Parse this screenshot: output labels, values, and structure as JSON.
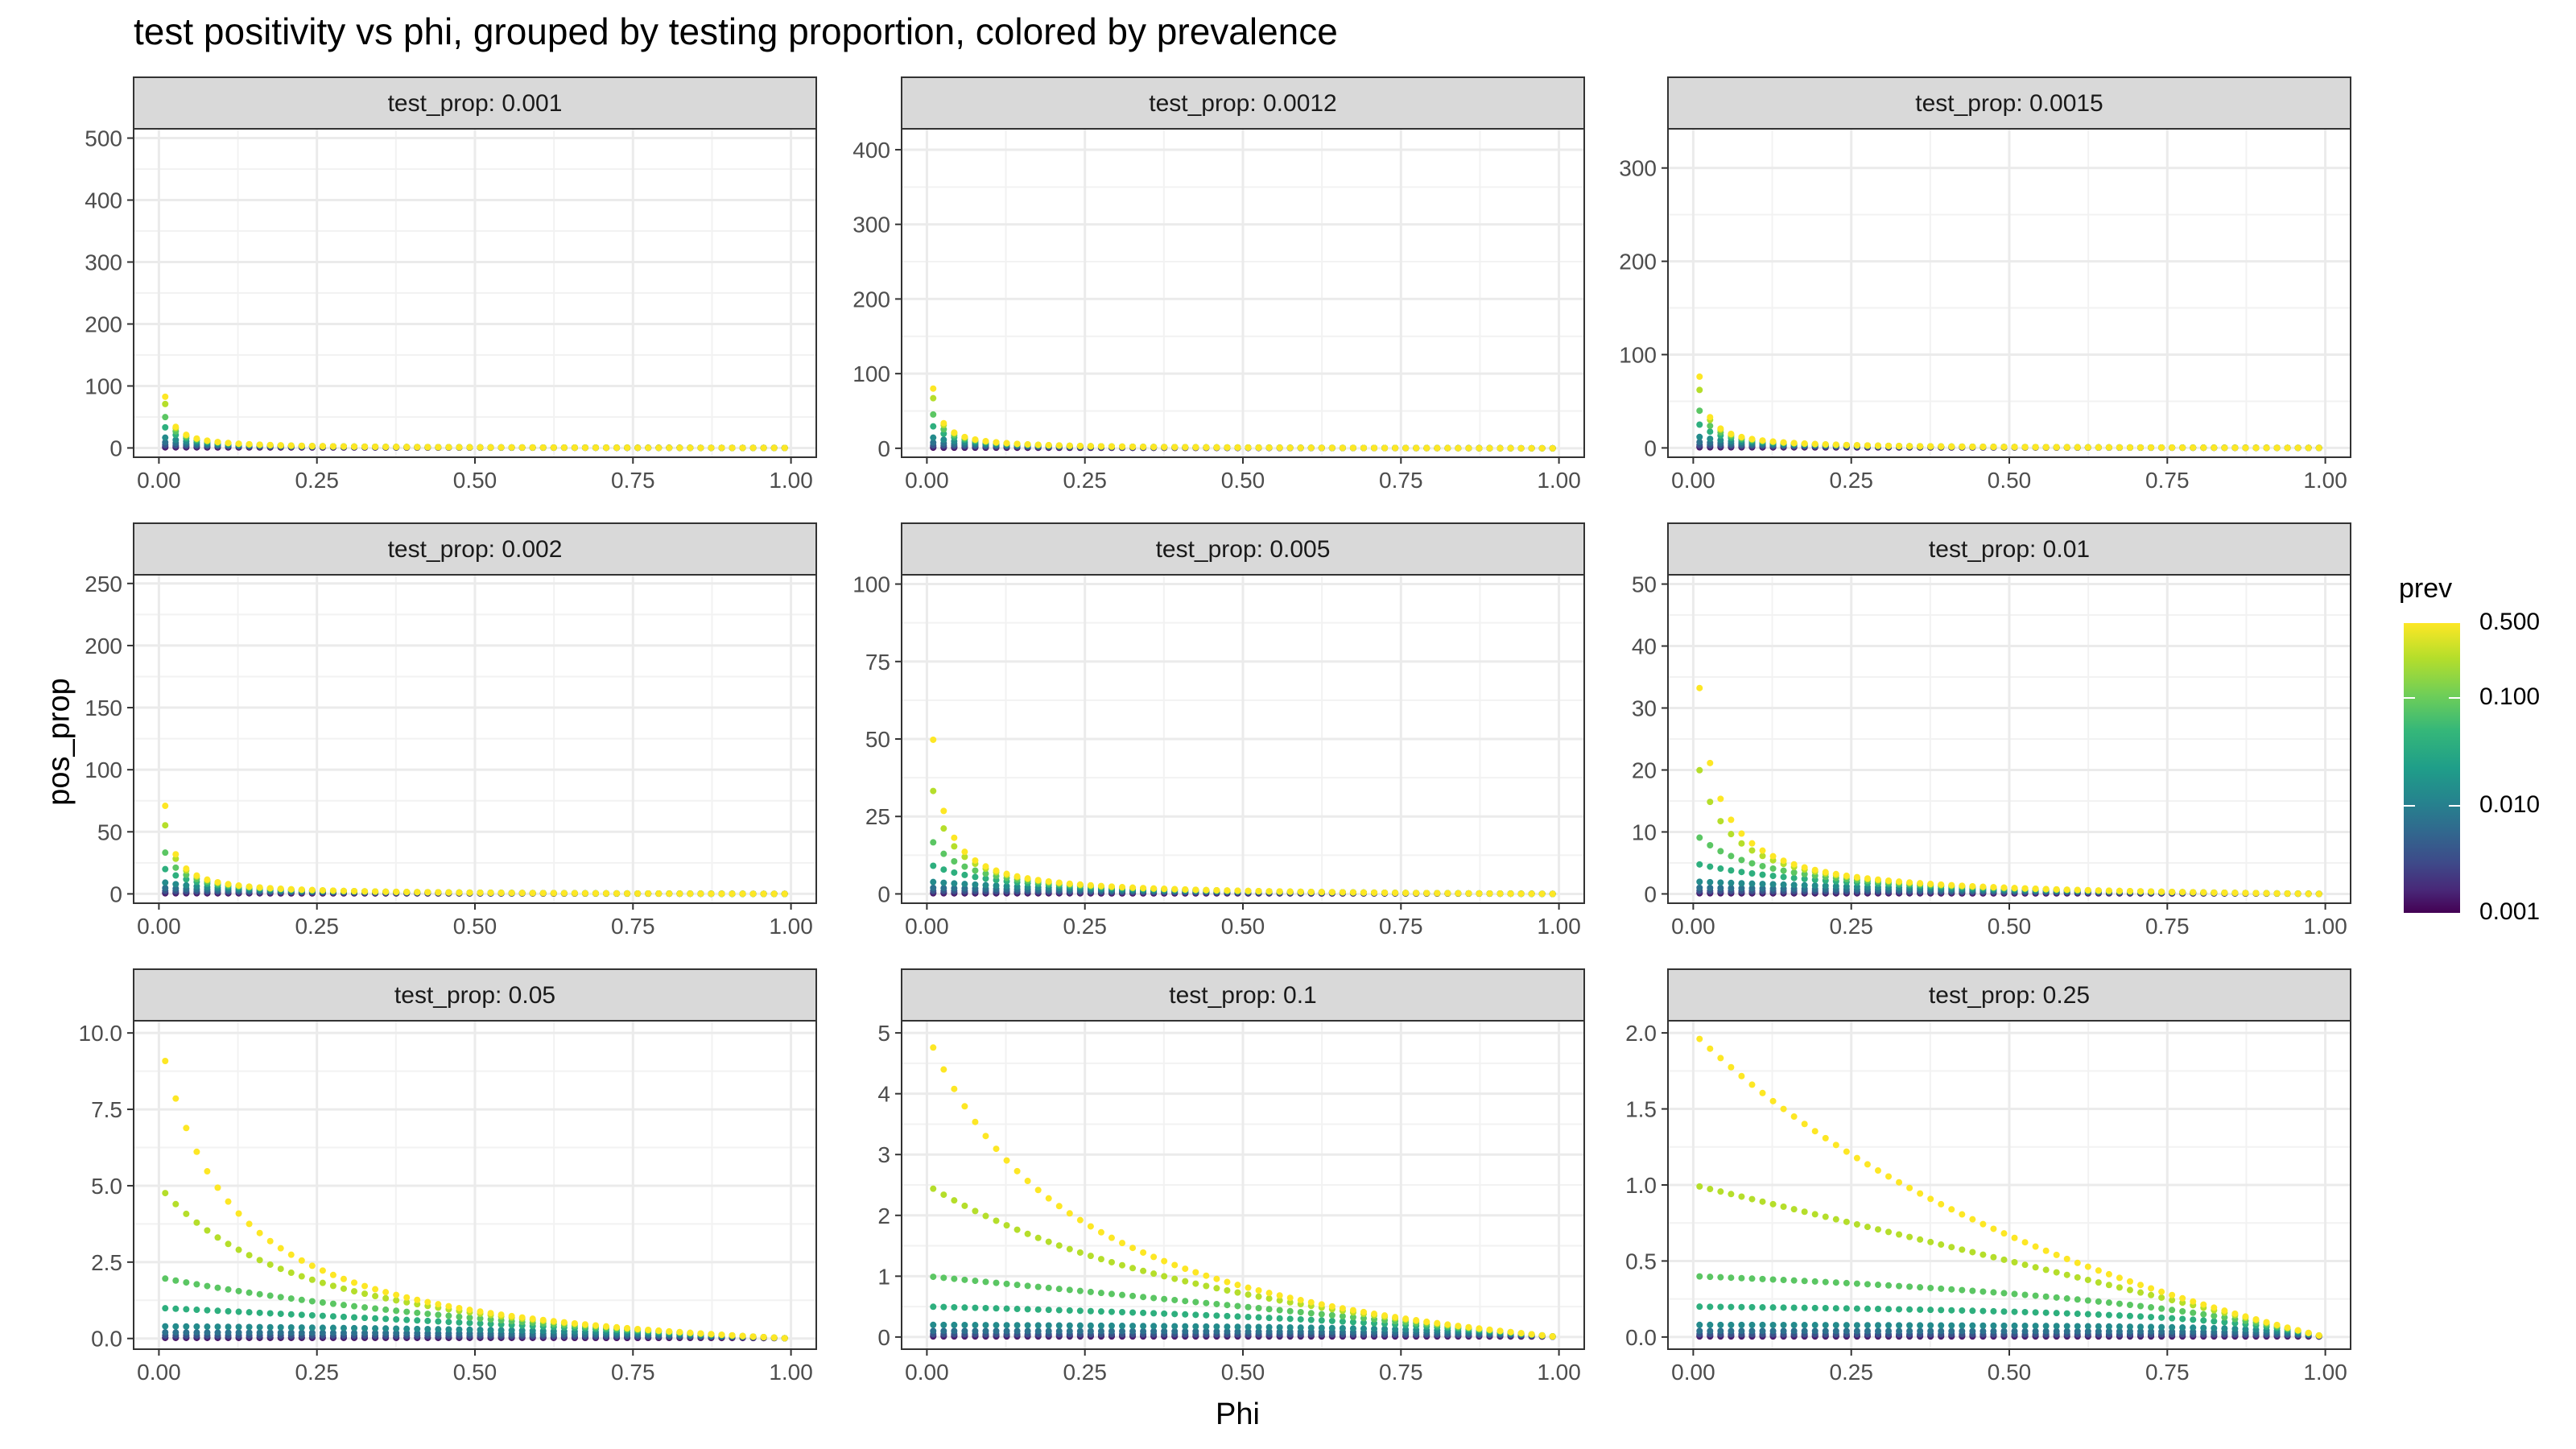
{
  "chart_data": {
    "type": "scatter",
    "title": "test positivity vs phi, grouped by testing proportion, colored by prevalence",
    "xlabel": "Phi",
    "ylabel": "pos_prop",
    "facet_prefix": "test_prop: ",
    "x_ticks": [
      "0.00",
      "0.25",
      "0.50",
      "0.75",
      "1.00"
    ],
    "xlim": [
      -0.04,
      1.04
    ],
    "phi_range": [
      0.01,
      0.99
    ],
    "points_per_series": 60,
    "prevalence_levels": [
      0.5,
      0.25,
      0.1,
      0.05,
      0.02,
      0.01,
      0.005,
      0.002,
      0.001
    ],
    "legend": {
      "title": "prev",
      "ticks": [
        "0.500",
        "0.100",
        "0.010",
        "0.001"
      ],
      "tick_values": [
        0.5,
        0.1,
        0.01,
        0.001
      ],
      "scale": "log",
      "palette": "viridis"
    },
    "facets": [
      {
        "label": "0.001",
        "test_prop": 0.001,
        "ylim": [
          -15,
          515
        ],
        "y_ticks": [
          0,
          100,
          200,
          300,
          400,
          500
        ],
        "y_labels": [
          "0",
          "100",
          "200",
          "300",
          "400",
          "500"
        ]
      },
      {
        "label": "0.0012",
        "test_prop": 0.0012,
        "ylim": [
          -12,
          428
        ],
        "y_ticks": [
          0,
          100,
          200,
          300,
          400
        ],
        "y_labels": [
          "0",
          "100",
          "200",
          "300",
          "400"
        ]
      },
      {
        "label": "0.0015",
        "test_prop": 0.0015,
        "ylim": [
          -10,
          342
        ],
        "y_ticks": [
          0,
          100,
          200,
          300
        ],
        "y_labels": [
          "0",
          "100",
          "200",
          "300"
        ]
      },
      {
        "label": "0.002",
        "test_prop": 0.002,
        "ylim": [
          -7.5,
          257
        ],
        "y_ticks": [
          0,
          50,
          100,
          150,
          200,
          250
        ],
        "y_labels": [
          "0",
          "50",
          "100",
          "150",
          "200",
          "250"
        ]
      },
      {
        "label": "0.005",
        "test_prop": 0.005,
        "ylim": [
          -3,
          103
        ],
        "y_ticks": [
          0,
          25,
          50,
          75,
          100
        ],
        "y_labels": [
          "0",
          "25",
          "50",
          "75",
          "100"
        ]
      },
      {
        "label": "0.01",
        "test_prop": 0.01,
        "ylim": [
          -1.5,
          51.5
        ],
        "y_ticks": [
          0,
          10,
          20,
          30,
          40,
          50
        ],
        "y_labels": [
          "0",
          "10",
          "20",
          "30",
          "40",
          "50"
        ]
      },
      {
        "label": "0.05",
        "test_prop": 0.05,
        "ylim": [
          -0.35,
          10.4
        ],
        "y_ticks": [
          0,
          2.5,
          5,
          7.5,
          10
        ],
        "y_labels": [
          "0.0",
          "2.5",
          "5.0",
          "7.5",
          "10.0"
        ]
      },
      {
        "label": "0.1",
        "test_prop": 0.1,
        "ylim": [
          -0.2,
          5.2
        ],
        "y_ticks": [
          0,
          1,
          2,
          3,
          4,
          5
        ],
        "y_labels": [
          "0",
          "1",
          "2",
          "3",
          "4",
          "5"
        ]
      },
      {
        "label": "0.25",
        "test_prop": 0.25,
        "ylim": [
          -0.08,
          2.08
        ],
        "y_ticks": [
          0,
          0.5,
          1,
          1.5,
          2
        ],
        "y_labels": [
          "0.0",
          "0.5",
          "1.0",
          "1.5",
          "2.0"
        ]
      }
    ],
    "grid": true,
    "legend_position": "right"
  }
}
